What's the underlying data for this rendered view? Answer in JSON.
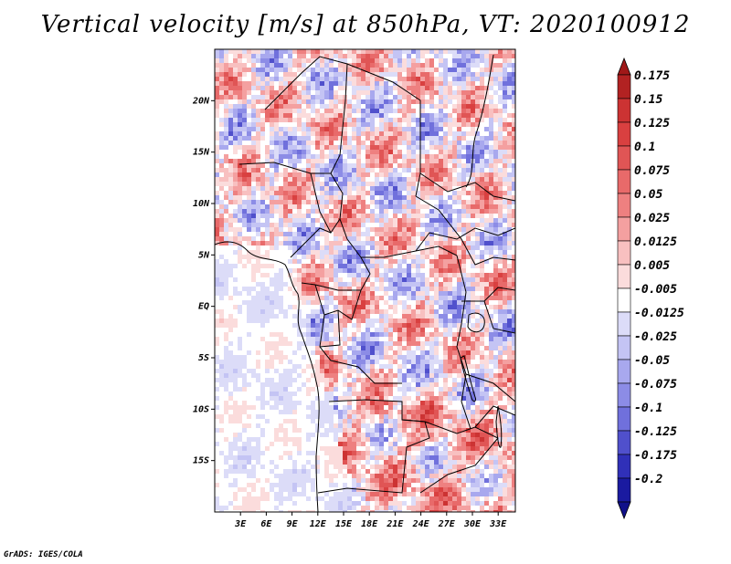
{
  "title": "Vertical velocity [m/s] at 850hPa, VT: 2020100912",
  "credit": "GrADS: IGES/COLA",
  "chart_data": {
    "type": "heatmap",
    "title": "Vertical velocity [m/s] at 850hPa, VT: 2020100912",
    "variable": "Vertical velocity",
    "units": "m/s",
    "level": "850hPa",
    "valid_time": "2020100912",
    "xlim": [
      0,
      35
    ],
    "ylim": [
      -20,
      25
    ],
    "x_ticks": [
      {
        "value": 3,
        "label": "3E"
      },
      {
        "value": 6,
        "label": "6E"
      },
      {
        "value": 9,
        "label": "9E"
      },
      {
        "value": 12,
        "label": "12E"
      },
      {
        "value": 15,
        "label": "15E"
      },
      {
        "value": 18,
        "label": "18E"
      },
      {
        "value": 21,
        "label": "21E"
      },
      {
        "value": 24,
        "label": "24E"
      },
      {
        "value": 27,
        "label": "27E"
      },
      {
        "value": 30,
        "label": "30E"
      },
      {
        "value": 33,
        "label": "33E"
      }
    ],
    "y_ticks": [
      {
        "value": 20,
        "label": "20N"
      },
      {
        "value": 15,
        "label": "15N"
      },
      {
        "value": 10,
        "label": "10N"
      },
      {
        "value": 5,
        "label": "5N"
      },
      {
        "value": 0,
        "label": "EQ"
      },
      {
        "value": -5,
        "label": "5S"
      },
      {
        "value": -10,
        "label": "10S"
      },
      {
        "value": -15,
        "label": "15S"
      }
    ],
    "colorbar": {
      "levels": [
        {
          "label": "0.175",
          "value": 0.175,
          "color": "#b22222"
        },
        {
          "label": "0.15",
          "value": 0.15,
          "color": "#cc3333"
        },
        {
          "label": "0.125",
          "value": 0.125,
          "color": "#d94040"
        },
        {
          "label": "0.1",
          "value": 0.1,
          "color": "#e05555"
        },
        {
          "label": "0.075",
          "value": 0.075,
          "color": "#e86a6a"
        },
        {
          "label": "0.05",
          "value": 0.05,
          "color": "#ee8080"
        },
        {
          "label": "0.025",
          "value": 0.025,
          "color": "#f4a0a0"
        },
        {
          "label": "0.0125",
          "value": 0.0125,
          "color": "#f8c0c0"
        },
        {
          "label": "0.005",
          "value": 0.005,
          "color": "#fbdcdc"
        },
        {
          "label": "-0.005",
          "value": -0.005,
          "color": "#ffffff"
        },
        {
          "label": "-0.0125",
          "value": -0.0125,
          "color": "#dcdcf8"
        },
        {
          "label": "-0.025",
          "value": -0.025,
          "color": "#c4c4f4"
        },
        {
          "label": "-0.05",
          "value": -0.05,
          "color": "#a8a8ee"
        },
        {
          "label": "-0.075",
          "value": -0.075,
          "color": "#8c8ce6"
        },
        {
          "label": "-0.1",
          "value": -0.1,
          "color": "#7070dc"
        },
        {
          "label": "-0.125",
          "value": -0.125,
          "color": "#5050cc"
        },
        {
          "label": "-0.175",
          "value": -0.175,
          "color": "#3030b8"
        },
        {
          "label": "-0.2",
          "value": -0.2,
          "color": "#1a1aa0"
        }
      ],
      "top_arrow_color": "#a01818",
      "bottom_arrow_color": "#10108a"
    }
  }
}
